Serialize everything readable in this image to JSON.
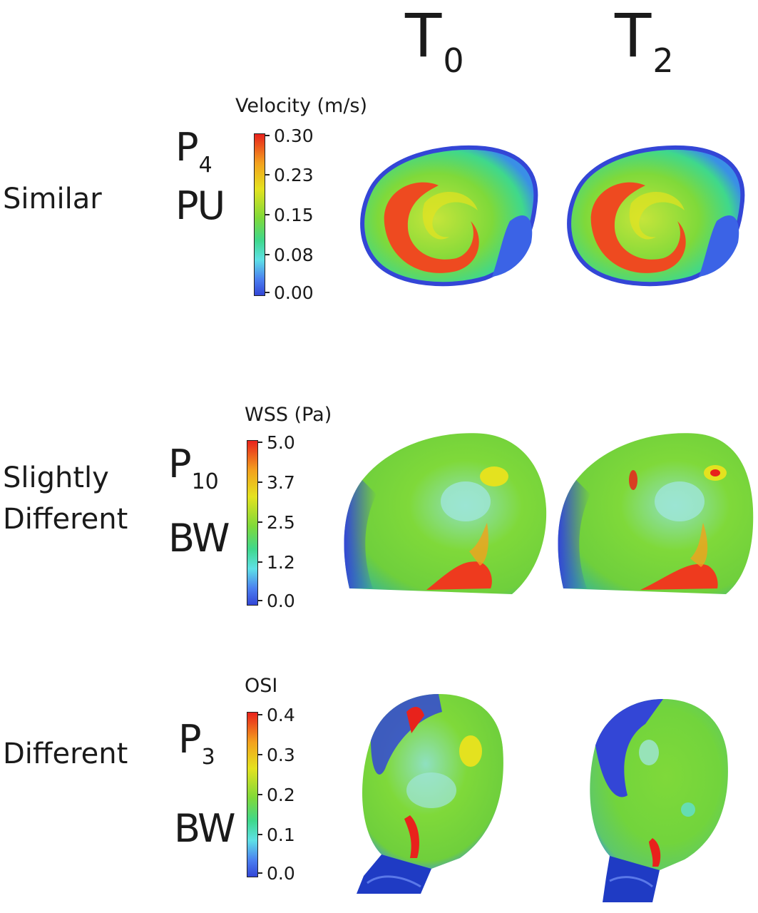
{
  "columns": [
    {
      "main": "T",
      "sub": "0"
    },
    {
      "main": "T",
      "sub": "2"
    }
  ],
  "rows": [
    {
      "category": "Similar",
      "patient": {
        "main": "P",
        "sub": "4"
      },
      "group": "PU",
      "colorbar": {
        "title": "Velocity (m/s)",
        "ticks": [
          "0.30",
          "0.23",
          "0.15",
          "0.08",
          "0.00"
        ]
      }
    },
    {
      "category_lines": [
        "Slightly",
        "Different"
      ],
      "patient": {
        "main": "P",
        "sub": "10"
      },
      "group": "BW",
      "colorbar": {
        "title": "WSS (Pa)",
        "ticks": [
          "5.0",
          "3.7",
          "2.5",
          "1.2",
          "0.0"
        ]
      }
    },
    {
      "category": "Different",
      "patient": {
        "main": "P",
        "sub": "3"
      },
      "group": "BW",
      "colorbar": {
        "title": "OSI",
        "ticks": [
          "0.4",
          "0.3",
          "0.2",
          "0.1",
          "0.0"
        ]
      }
    }
  ],
  "colors": {
    "high": "#e8221c",
    "mid": "#7fd93a",
    "low": "#3346d6",
    "cyan": "#5ee0e6"
  }
}
